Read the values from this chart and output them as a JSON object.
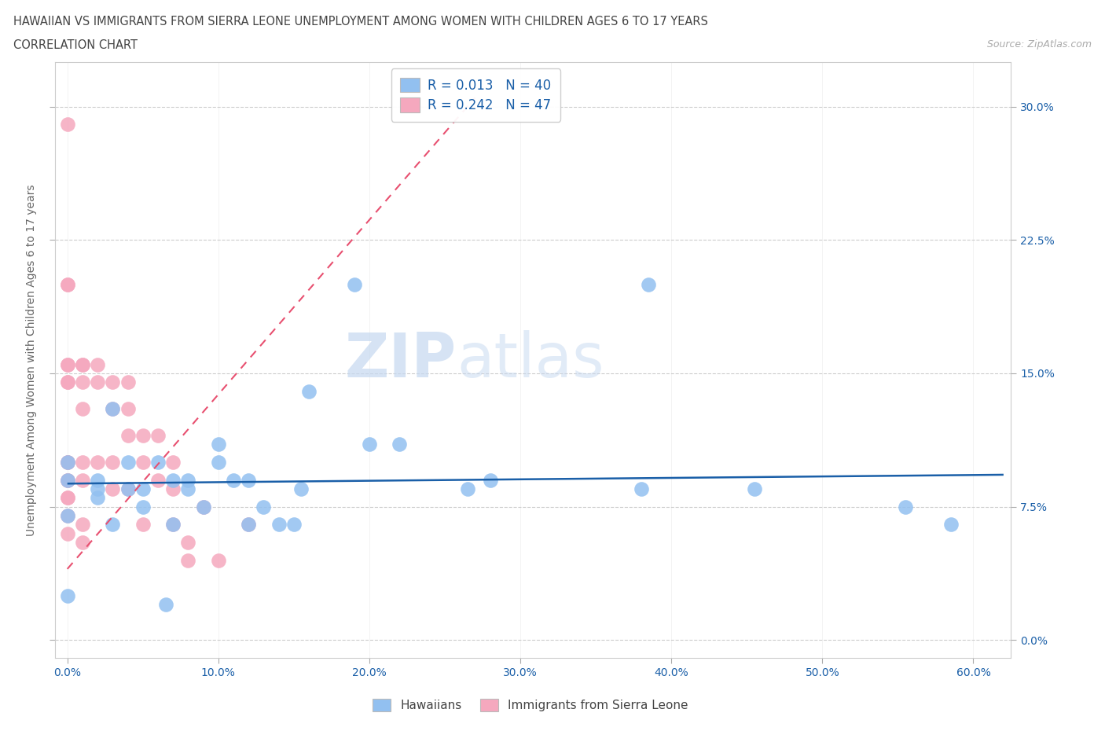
{
  "title_line1": "HAWAIIAN VS IMMIGRANTS FROM SIERRA LEONE UNEMPLOYMENT AMONG WOMEN WITH CHILDREN AGES 6 TO 17 YEARS",
  "title_line2": "CORRELATION CHART",
  "source_text": "Source: ZipAtlas.com",
  "ylabel": "Unemployment Among Women with Children Ages 6 to 17 years",
  "xlim": [
    -0.008,
    0.625
  ],
  "ylim": [
    -0.01,
    0.325
  ],
  "xticks": [
    0.0,
    0.1,
    0.2,
    0.3,
    0.4,
    0.5,
    0.6
  ],
  "xticklabels": [
    "0.0%",
    "10.0%",
    "20.0%",
    "30.0%",
    "40.0%",
    "50.0%",
    "60.0%"
  ],
  "yticks": [
    0.0,
    0.075,
    0.15,
    0.225,
    0.3
  ],
  "yticklabels": [
    "0.0%",
    "7.5%",
    "15.0%",
    "22.5%",
    "30.0%"
  ],
  "hawaiians_color": "#92c0f0",
  "sierra_leone_color": "#f5a8be",
  "trend_hawaiians_color": "#1a5fa8",
  "trend_sierra_leone_color": "#e85070",
  "R_hawaiians": 0.013,
  "N_hawaiians": 40,
  "R_sierra_leone": 0.242,
  "N_sierra_leone": 47,
  "legend_label_hawaiians": "Hawaiians",
  "legend_label_sierra_leone": "Immigrants from Sierra Leone",
  "watermark_left": "ZIP",
  "watermark_right": "atlas",
  "background_color": "#ffffff",
  "grid_color": "#cccccc",
  "hawaiians_x": [
    0.0,
    0.0,
    0.0,
    0.0,
    0.02,
    0.02,
    0.02,
    0.03,
    0.03,
    0.04,
    0.04,
    0.05,
    0.05,
    0.06,
    0.065,
    0.07,
    0.07,
    0.08,
    0.08,
    0.09,
    0.1,
    0.1,
    0.11,
    0.12,
    0.12,
    0.13,
    0.14,
    0.15,
    0.155,
    0.16,
    0.19,
    0.2,
    0.22,
    0.265,
    0.28,
    0.38,
    0.385,
    0.455,
    0.555,
    0.585
  ],
  "hawaiians_y": [
    0.025,
    0.07,
    0.09,
    0.1,
    0.08,
    0.085,
    0.09,
    0.065,
    0.13,
    0.085,
    0.1,
    0.075,
    0.085,
    0.1,
    0.02,
    0.065,
    0.09,
    0.085,
    0.09,
    0.075,
    0.1,
    0.11,
    0.09,
    0.065,
    0.09,
    0.075,
    0.065,
    0.065,
    0.085,
    0.14,
    0.2,
    0.11,
    0.11,
    0.085,
    0.09,
    0.085,
    0.2,
    0.085,
    0.075,
    0.065
  ],
  "sierra_leone_x": [
    0.0,
    0.0,
    0.0,
    0.0,
    0.0,
    0.0,
    0.0,
    0.0,
    0.0,
    0.0,
    0.0,
    0.0,
    0.0,
    0.0,
    0.0,
    0.01,
    0.01,
    0.01,
    0.01,
    0.01,
    0.01,
    0.01,
    0.01,
    0.02,
    0.02,
    0.02,
    0.03,
    0.03,
    0.03,
    0.03,
    0.04,
    0.04,
    0.04,
    0.04,
    0.05,
    0.05,
    0.05,
    0.06,
    0.06,
    0.07,
    0.07,
    0.07,
    0.08,
    0.08,
    0.09,
    0.1,
    0.12
  ],
  "sierra_leone_y": [
    0.29,
    0.2,
    0.2,
    0.155,
    0.155,
    0.145,
    0.145,
    0.1,
    0.1,
    0.09,
    0.09,
    0.08,
    0.08,
    0.07,
    0.06,
    0.155,
    0.155,
    0.145,
    0.13,
    0.1,
    0.09,
    0.065,
    0.055,
    0.155,
    0.145,
    0.1,
    0.145,
    0.13,
    0.1,
    0.085,
    0.145,
    0.13,
    0.115,
    0.085,
    0.115,
    0.1,
    0.065,
    0.115,
    0.09,
    0.1,
    0.085,
    0.065,
    0.055,
    0.045,
    0.075,
    0.045,
    0.065
  ],
  "sierra_trend_x0": 0.0,
  "sierra_trend_y0": 0.04,
  "sierra_trend_x1": 0.27,
  "sierra_trend_y1": 0.305,
  "hawaiians_trend_x0": 0.0,
  "hawaiians_trend_y0": 0.088,
  "hawaiians_trend_x1": 0.62,
  "hawaiians_trend_y1": 0.093
}
